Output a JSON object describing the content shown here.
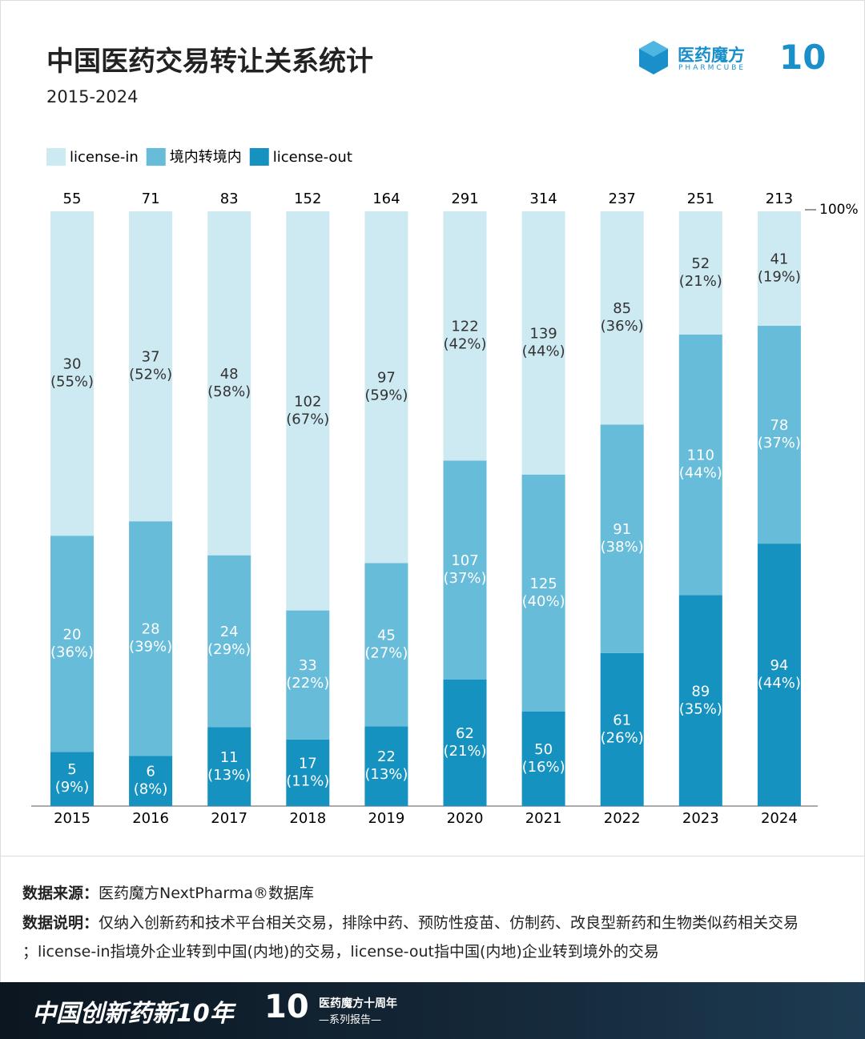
{
  "header": {
    "title": "中国医药交易转让关系统计",
    "subtitle": "2015-2024",
    "brand": "医药魔方",
    "brand_en": "PHARMCUBE",
    "logo_mark": "10"
  },
  "chart_data": {
    "type": "bar",
    "stacked": "percent",
    "annotation": "100%",
    "categories": [
      "2015",
      "2016",
      "2017",
      "2018",
      "2019",
      "2020",
      "2021",
      "2022",
      "2023",
      "2024"
    ],
    "totals": [
      55,
      71,
      83,
      152,
      164,
      291,
      314,
      237,
      251,
      213
    ],
    "series": [
      {
        "name": "license-in",
        "color": "#cde9f2",
        "label_color": "#333333",
        "values": [
          30,
          37,
          48,
          102,
          97,
          122,
          139,
          85,
          52,
          41
        ],
        "share_labels": [
          "(55%)",
          "(52%)",
          "(58%)",
          "(67%)",
          "(59%)",
          "(42%)",
          "(44%)",
          "(36%)",
          "(21%)",
          "(19%)"
        ]
      },
      {
        "name": "境内转境内",
        "color": "#67bcd9",
        "label_color": "#ffffff",
        "values": [
          20,
          28,
          24,
          33,
          45,
          107,
          125,
          91,
          110,
          78
        ],
        "share_labels": [
          "(36%)",
          "(39%)",
          "(29%)",
          "(22%)",
          "(27%)",
          "(37%)",
          "(40%)",
          "(38%)",
          "(44%)",
          "(37%)"
        ]
      },
      {
        "name": "license-out",
        "color": "#1592bf",
        "label_color": "#ffffff",
        "values": [
          5,
          6,
          11,
          17,
          22,
          62,
          50,
          61,
          89,
          94
        ],
        "share_labels": [
          "(9%)",
          "(8%)",
          "(13%)",
          "(11%)",
          "(13%)",
          "(21%)",
          "(16%)",
          "(26%)",
          "(35%)",
          "(44%)"
        ]
      }
    ]
  },
  "footer": {
    "source_label": "数据来源：",
    "source": "医药魔方NextPharma®数据库",
    "note_label": "数据说明：",
    "note_lines": [
      "仅纳入创新药和技术平台相关交易，排除中药、预防性疫苗、仿制药、改良型新药和生物类似药相关交易",
      "；license-in指境外企业转到中国(内地)的交易，license-out指中国(内地)企业转到境外的交易"
    ]
  },
  "banner": {
    "slogan": "中国创新药新10年",
    "mark": "10",
    "series_title": "医药魔方十周年",
    "series_sub": "—系列报告—"
  }
}
